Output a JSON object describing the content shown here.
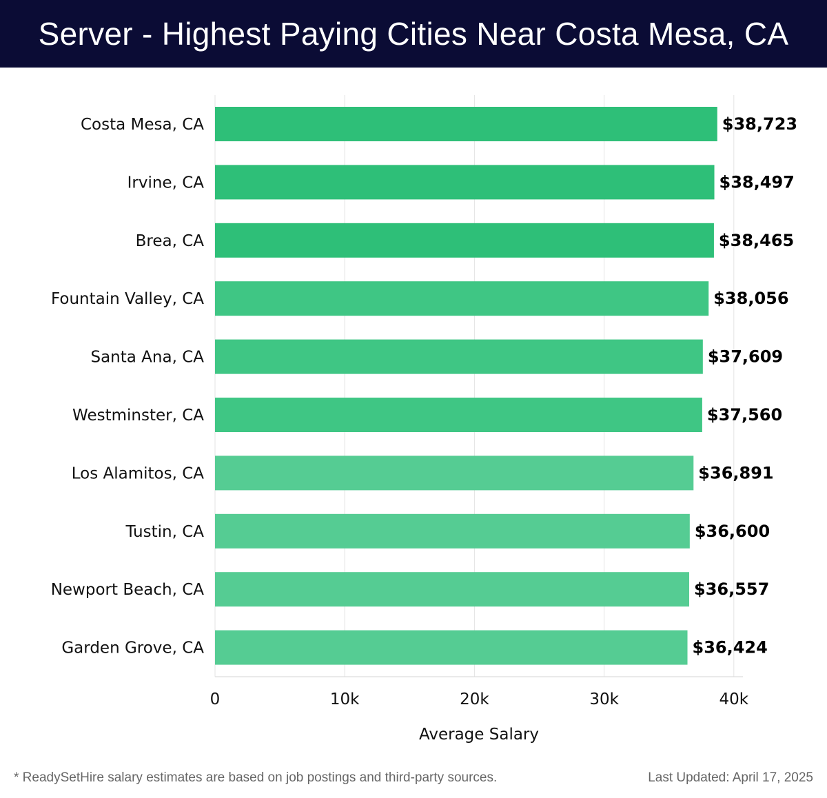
{
  "header": {
    "title": "Server - Highest Paying Cities Near Costa Mesa, CA"
  },
  "colors": {
    "header_bg": "#0b0c35",
    "bar_dark": "#2ebf78",
    "bar_mid": "#3fc684",
    "bar_light": "#55cc93",
    "grid": "#e3e3e3"
  },
  "chart_data": {
    "type": "bar",
    "orientation": "horizontal",
    "categories": [
      "Costa Mesa, CA",
      "Irvine, CA",
      "Brea, CA",
      "Fountain Valley, CA",
      "Santa Ana, CA",
      "Westminster, CA",
      "Los Alamitos, CA",
      "Tustin, CA",
      "Newport Beach, CA",
      "Garden Grove, CA"
    ],
    "values": [
      38723,
      38497,
      38465,
      38056,
      37609,
      37560,
      36891,
      36600,
      36557,
      36424
    ],
    "value_labels": [
      "$38,723",
      "$38,497",
      "$38,465",
      "$38,056",
      "$37,609",
      "$37,560",
      "$36,891",
      "$36,600",
      "$36,557",
      "$36,424"
    ],
    "xlabel": "Average Salary",
    "ylabel": "",
    "xlim": [
      0,
      40700
    ],
    "xticks": [
      0,
      10000,
      20000,
      30000,
      40000
    ],
    "xtick_labels": [
      "0",
      "10k",
      "20k",
      "30k",
      "40k"
    ],
    "grid": true
  },
  "footer": {
    "note": "* ReadySetHire salary estimates are based on job postings and third-party sources.",
    "updated": "Last Updated: April 17, 2025"
  }
}
